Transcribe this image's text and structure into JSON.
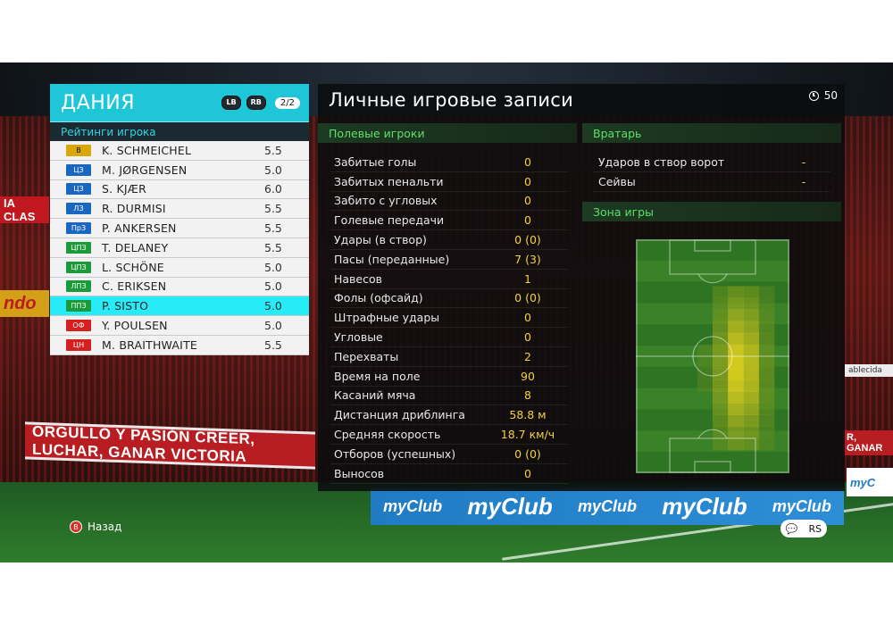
{
  "team": {
    "name": "ДАНИЯ",
    "btn_lb": "LB",
    "btn_rb": "RB",
    "page": "2/2",
    "subtitle": "Рейтинги игрока"
  },
  "players": [
    {
      "pos": "В",
      "name": "K. SCHMEICHEL",
      "rating": "5.5",
      "group": "gk"
    },
    {
      "pos": "ЦЗ",
      "name": "M. JØRGENSEN",
      "rating": "5.0",
      "group": "def"
    },
    {
      "pos": "ЦЗ",
      "name": "S. KJÆR",
      "rating": "6.0",
      "group": "def"
    },
    {
      "pos": "ЛЗ",
      "name": "R. DURMISI",
      "rating": "5.5",
      "group": "def"
    },
    {
      "pos": "ПрЗ",
      "name": "P. ANKERSEN",
      "rating": "5.5",
      "group": "def"
    },
    {
      "pos": "ЦПЗ",
      "name": "T. DELANEY",
      "rating": "5.5",
      "group": "mid"
    },
    {
      "pos": "ЦПЗ",
      "name": "L. SCHÖNE",
      "rating": "5.0",
      "group": "mid"
    },
    {
      "pos": "ЛПЗ",
      "name": "C. ERIKSEN",
      "rating": "5.0",
      "group": "mid"
    },
    {
      "pos": "ППЗ",
      "name": "P. SISTO",
      "rating": "5.0",
      "group": "mid",
      "selected": true
    },
    {
      "pos": "ОФ",
      "name": "Y. POULSEN",
      "rating": "5.0",
      "group": "fwd"
    },
    {
      "pos": "ЦН",
      "name": "M. BRAITHWAITE",
      "rating": "5.5",
      "group": "fwd"
    }
  ],
  "main": {
    "title": "Личные игровые записи",
    "timer": "50",
    "field_header": "Полевые игроки",
    "gk_header": "Вратарь",
    "zone_header": "Зона игры",
    "field_stats": [
      {
        "label": "Забитые голы",
        "value": "0"
      },
      {
        "label": "Забитых пенальти",
        "value": "0"
      },
      {
        "label": "Забито с угловых",
        "value": "0"
      },
      {
        "label": "Голевые передачи",
        "value": "0"
      },
      {
        "label": "Удары (в створ)",
        "value": "0 (0)"
      },
      {
        "label": "Пасы (переданные)",
        "value": "7 (3)"
      },
      {
        "label": "Навесов",
        "value": "1"
      },
      {
        "label": "Фолы (офсайд)",
        "value": "0 (0)"
      },
      {
        "label": "Штрафные удары",
        "value": "0"
      },
      {
        "label": "Угловые",
        "value": "0"
      },
      {
        "label": "Перехваты",
        "value": "2"
      },
      {
        "label": "Время на поле",
        "value": "90"
      },
      {
        "label": "Касаний мяча",
        "value": "8"
      },
      {
        "label": "Дистанция дриблинга",
        "value": "58.8 м"
      },
      {
        "label": "Средняя скорость",
        "value": "18.7 км/ч"
      },
      {
        "label": "Отборов (успешных)",
        "value": "0 (0)"
      },
      {
        "label": "Выносов",
        "value": "0"
      }
    ],
    "gk_stats": [
      {
        "label": "Ударов в створ ворот",
        "value": "-"
      },
      {
        "label": "Сейвы",
        "value": "-"
      }
    ]
  },
  "footer": {
    "back_key": "B",
    "back_label": "Назад",
    "icon_chat": "chat-icon",
    "icon_rs": "RS"
  },
  "stadium": {
    "banner_left": "ORGULLO Y PASIÓN  CREER, LUCHAR, GANAR  VICTORIA",
    "banner_right": "R, GANAR",
    "ad_main": "myClub",
    "ad_right": "myC",
    "side_left_1": "IA CLAS",
    "side_left_2": "ndo",
    "side_right": "ablecida"
  }
}
